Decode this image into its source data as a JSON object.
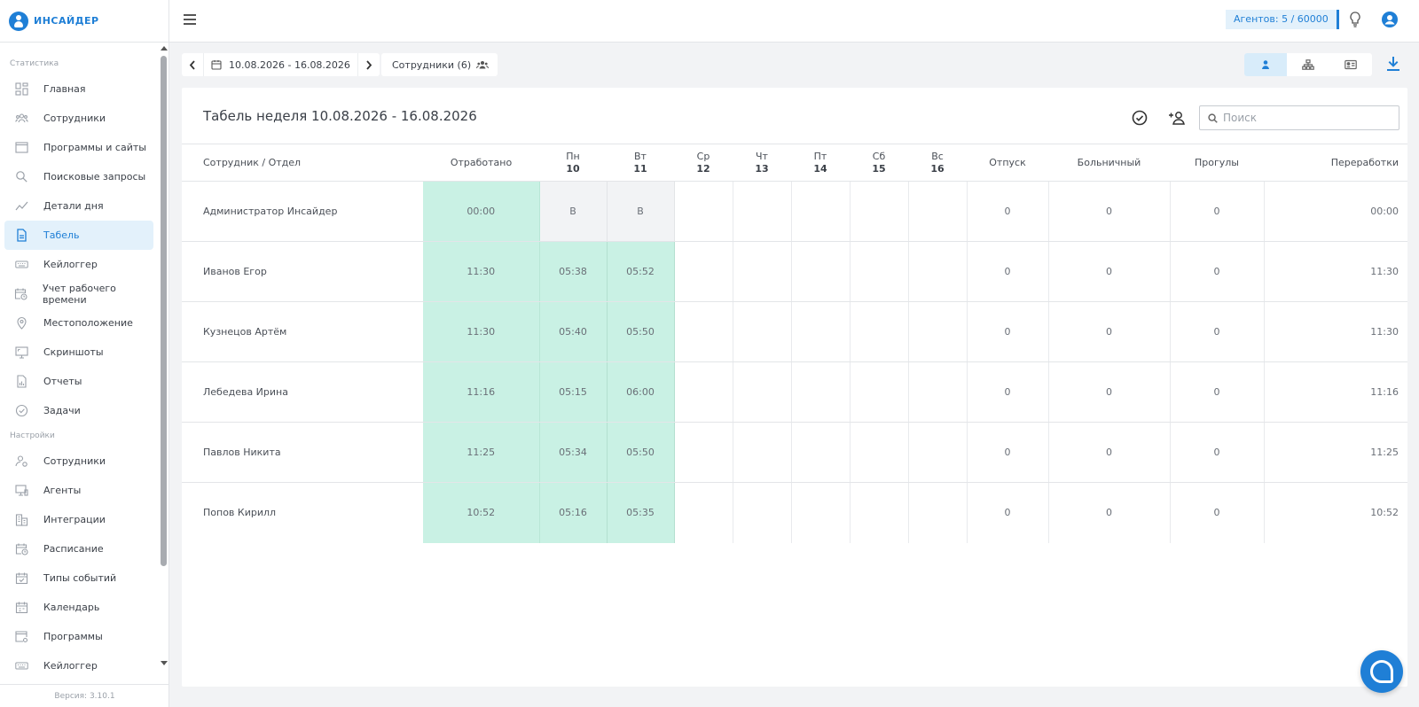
{
  "app": {
    "logo_text": "ИНСАЙДЕР",
    "version": "Версия: 3.10.1",
    "accent": "#1f7fd6"
  },
  "header": {
    "agents_badge": "Агентов: 5 / 60000"
  },
  "sidebar": {
    "sections": [
      {
        "title": "Статистика",
        "items": [
          {
            "label": "Главная",
            "icon": "dashboard-icon"
          },
          {
            "label": "Сотрудники",
            "icon": "users-icon"
          },
          {
            "label": "Программы и сайты",
            "icon": "window-icon"
          },
          {
            "label": "Поисковые запросы",
            "icon": "search-icon"
          },
          {
            "label": "Детали дня",
            "icon": "chart-line-icon"
          },
          {
            "label": "Табель",
            "icon": "document-icon",
            "active": true
          },
          {
            "label": "Кейлоггер",
            "icon": "keyboard-icon"
          },
          {
            "label": "Учет рабочего времени",
            "icon": "calendar-clock-icon"
          },
          {
            "label": "Местоположение",
            "icon": "location-pin-icon"
          },
          {
            "label": "Скриншоты",
            "icon": "screenshot-icon"
          },
          {
            "label": "Отчеты",
            "icon": "report-icon"
          },
          {
            "label": "Задачи",
            "icon": "check-circle-icon"
          }
        ]
      },
      {
        "title": "Настройки",
        "items": [
          {
            "label": "Сотрудники",
            "icon": "user-settings-icon"
          },
          {
            "label": "Агенты",
            "icon": "monitor-icon"
          },
          {
            "label": "Интеграции",
            "icon": "building-icon"
          },
          {
            "label": "Расписание",
            "icon": "calendar-clock-icon"
          },
          {
            "label": "Типы событий",
            "icon": "calendar-check-icon"
          },
          {
            "label": "Календарь",
            "icon": "calendar-icon"
          },
          {
            "label": "Программы",
            "icon": "window-settings-icon"
          },
          {
            "label": "Кейлоггер",
            "icon": "keyboard-icon"
          }
        ]
      }
    ]
  },
  "toolbar": {
    "date_range": "10.08.2026 - 16.08.2026",
    "employees_filter": "Сотрудники (6)"
  },
  "card": {
    "title": "Табель неделя 10.08.2026 - 16.08.2026",
    "search_placeholder": "Поиск"
  },
  "table": {
    "columns": {
      "employee": "Сотрудник / Отдел",
      "worked": "Отработано",
      "vacation": "Отпуск",
      "sick": "Больничный",
      "absence": "Прогулы",
      "overtime": "Переработки"
    },
    "days": [
      {
        "name": "Пн",
        "num": "10"
      },
      {
        "name": "Вт",
        "num": "11"
      },
      {
        "name": "Ср",
        "num": "12"
      },
      {
        "name": "Чт",
        "num": "13"
      },
      {
        "name": "Пт",
        "num": "14"
      },
      {
        "name": "Сб",
        "num": "15"
      },
      {
        "name": "Вс",
        "num": "16"
      }
    ],
    "rows": [
      {
        "name": "Администратор Инсайдер",
        "worked": "00:00",
        "days": [
          "В",
          "В",
          "",
          "",
          "",
          "",
          ""
        ],
        "day_off": [
          true,
          true
        ],
        "vacation": "0",
        "sick": "0",
        "absence": "0",
        "overtime": "00:00"
      },
      {
        "name": "Иванов Егор",
        "worked": "11:30",
        "days": [
          "05:38",
          "05:52",
          "",
          "",
          "",
          "",
          ""
        ],
        "vacation": "0",
        "sick": "0",
        "absence": "0",
        "overtime": "11:30"
      },
      {
        "name": "Кузнецов Артём",
        "worked": "11:30",
        "days": [
          "05:40",
          "05:50",
          "",
          "",
          "",
          "",
          ""
        ],
        "vacation": "0",
        "sick": "0",
        "absence": "0",
        "overtime": "11:30"
      },
      {
        "name": "Лебедева Ирина",
        "worked": "11:16",
        "days": [
          "05:15",
          "06:00",
          "",
          "",
          "",
          "",
          ""
        ],
        "vacation": "0",
        "sick": "0",
        "absence": "0",
        "overtime": "11:16"
      },
      {
        "name": "Павлов Никита",
        "worked": "11:25",
        "days": [
          "05:34",
          "05:50",
          "",
          "",
          "",
          "",
          ""
        ],
        "vacation": "0",
        "sick": "0",
        "absence": "0",
        "overtime": "11:25"
      },
      {
        "name": "Попов Кирилл",
        "worked": "10:52",
        "days": [
          "05:16",
          "05:35",
          "",
          "",
          "",
          "",
          ""
        ],
        "vacation": "0",
        "sick": "0",
        "absence": "0",
        "overtime": "10:52"
      }
    ]
  }
}
